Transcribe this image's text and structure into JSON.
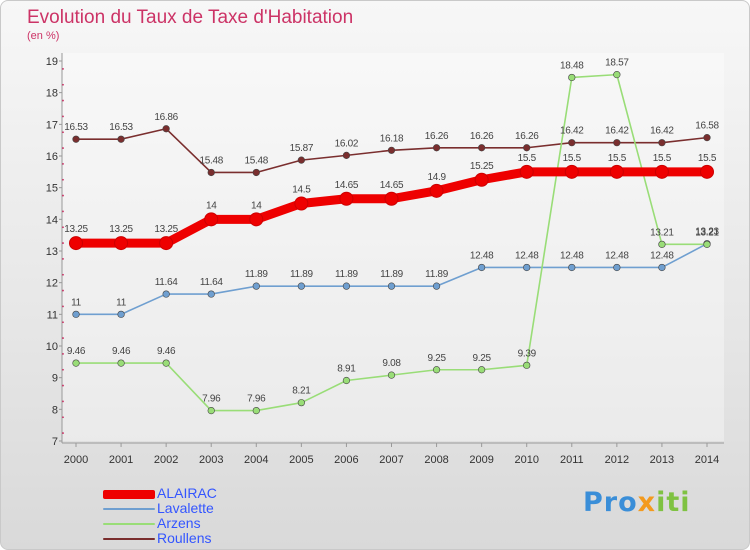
{
  "title": "Evolution du Taux de Taxe d'Habitation",
  "subtitle": "(en %)",
  "brand": {
    "part1": "Pro",
    "part2": "x",
    "part3": "iti"
  },
  "chart_data": {
    "type": "line",
    "title": "Evolution du Taux de Taxe d'Habitation",
    "ylabel": "(en %)",
    "xlabel": "",
    "x": [
      "2000",
      "2001",
      "2002",
      "2003",
      "2004",
      "2005",
      "2006",
      "2007",
      "2008",
      "2009",
      "2010",
      "2011",
      "2012",
      "2013",
      "2014"
    ],
    "ylim": [
      7,
      19
    ],
    "yticks": [
      "7",
      "8",
      "9",
      "10",
      "11",
      "12",
      "13",
      "14",
      "15",
      "16",
      "17",
      "18",
      "19"
    ],
    "grid": false,
    "legend_position": "bottom-left",
    "series": [
      {
        "name": "ALAIRAC",
        "color": "#ee0000",
        "values": [
          13.25,
          13.25,
          13.25,
          14,
          14,
          14.5,
          14.65,
          14.65,
          14.9,
          15.25,
          15.5,
          15.5,
          15.5,
          15.5,
          15.5
        ],
        "labels": [
          "13.25",
          "13.25",
          "13.25",
          "14",
          "14",
          "14.5",
          "14.65",
          "14.65",
          "14.9",
          "15.25",
          "15.5",
          "15.5",
          "15.5",
          "15.5",
          "15.5"
        ]
      },
      {
        "name": "Lavalette",
        "color": "#6f9fd0",
        "values": [
          11,
          11,
          11.64,
          11.64,
          11.89,
          11.89,
          11.89,
          11.89,
          11.89,
          12.48,
          12.48,
          12.48,
          12.48,
          12.48,
          13.23
        ],
        "labels": [
          "11",
          "11",
          "11.64",
          "11.64",
          "11.89",
          "11.89",
          "11.89",
          "11.89",
          "11.89",
          "12.48",
          "12.48",
          "12.48",
          "12.48",
          "12.48",
          "13.23"
        ]
      },
      {
        "name": "Arzens",
        "color": "#99dd77",
        "values": [
          9.46,
          9.46,
          9.46,
          7.96,
          7.96,
          8.21,
          8.91,
          9.08,
          9.25,
          9.25,
          9.39,
          18.48,
          18.57,
          13.21,
          13.21
        ],
        "labels": [
          "9.46",
          "9.46",
          "9.46",
          "7.96",
          "7.96",
          "8.21",
          "8.91",
          "9.08",
          "9.25",
          "9.25",
          "9.39",
          "18.48",
          "18.57",
          "13.21",
          "13.21"
        ]
      },
      {
        "name": "Roullens",
        "color": "#7a2e2e",
        "values": [
          16.53,
          16.53,
          16.86,
          15.48,
          15.48,
          15.87,
          16.02,
          16.18,
          16.26,
          16.26,
          16.26,
          16.42,
          16.42,
          16.42,
          16.58
        ],
        "labels": [
          "16.53",
          "16.53",
          "16.86",
          "15.48",
          "15.48",
          "15.87",
          "16.02",
          "16.18",
          "16.26",
          "16.26",
          "16.26",
          "16.42",
          "16.42",
          "16.42",
          "16.58"
        ]
      }
    ]
  }
}
